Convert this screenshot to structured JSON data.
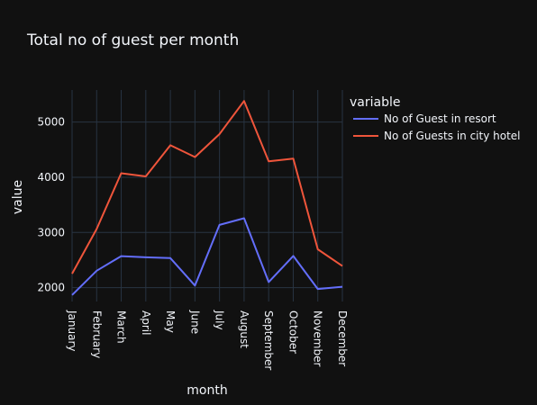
{
  "chart_data": {
    "type": "line",
    "title": "Total no of guest per month",
    "xlabel": "month",
    "ylabel": "value",
    "categories": [
      "January",
      "February",
      "March",
      "April",
      "May",
      "June",
      "July",
      "August",
      "September",
      "October",
      "November",
      "December"
    ],
    "ylim": [
      1750,
      5580
    ],
    "yticks": [
      2000,
      3000,
      4000,
      5000
    ],
    "grid": true,
    "legend": {
      "title": "variable",
      "placement": "right"
    },
    "series": [
      {
        "name": "No of Guest in resort",
        "color": "#636efa",
        "values": [
          1868,
          2308,
          2571,
          2550,
          2535,
          2038,
          3137,
          3257,
          2102,
          2575,
          1976,
          2017
        ]
      },
      {
        "name": "No of Guests in city hotel",
        "color": "#ef553b",
        "values": [
          2254,
          3064,
          4072,
          4015,
          4579,
          4366,
          4782,
          5381,
          4290,
          4337,
          2696,
          2392
        ]
      }
    ]
  }
}
